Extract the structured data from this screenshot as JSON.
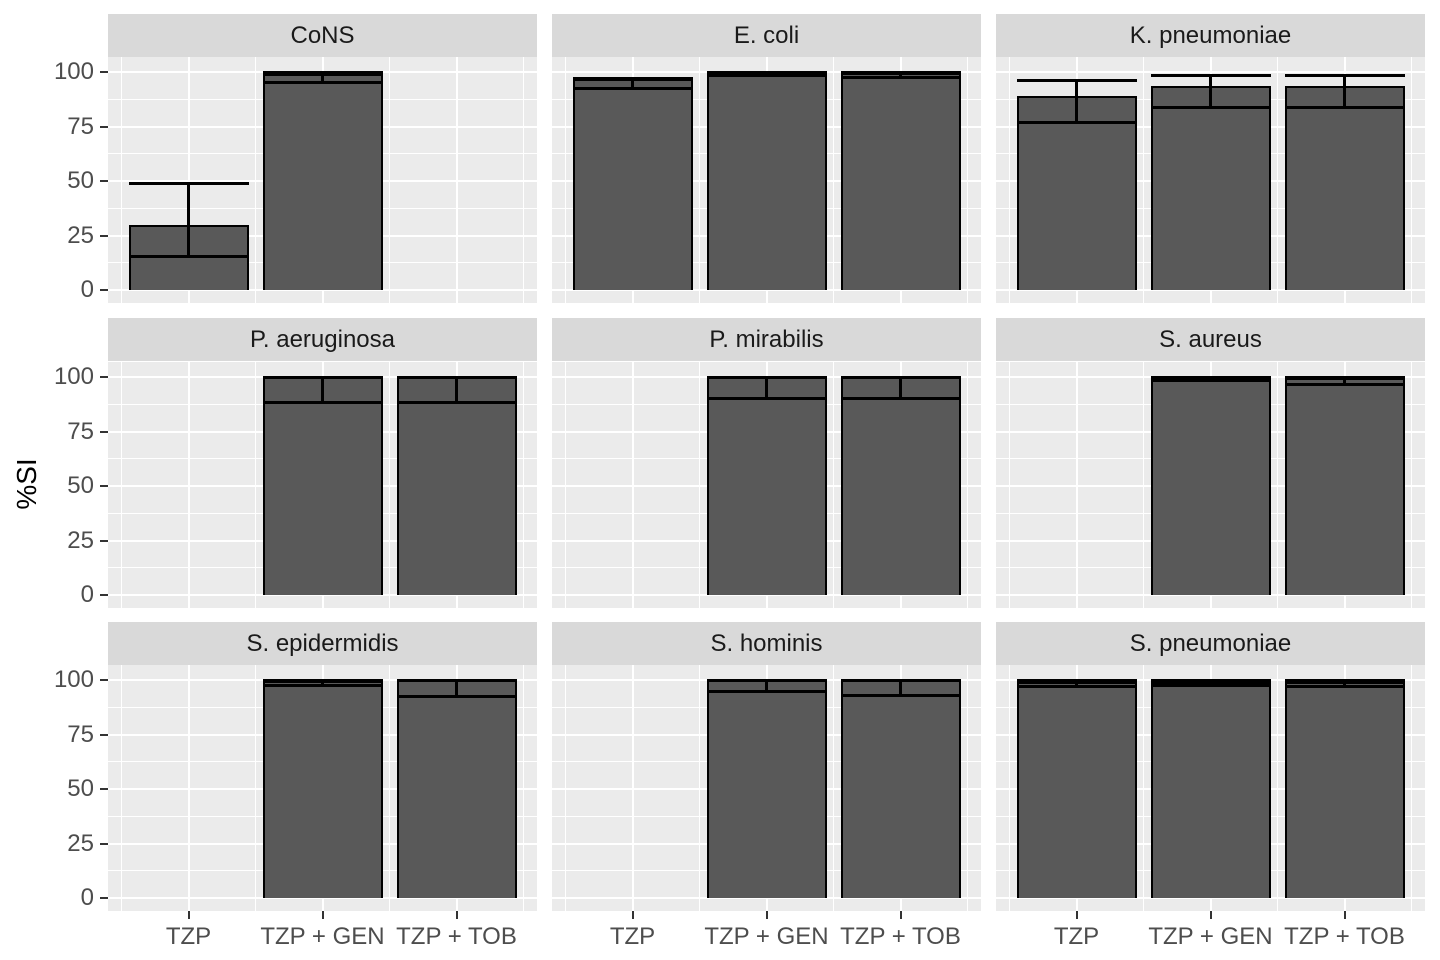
{
  "chart_data": {
    "type": "bar",
    "title": "",
    "ylabel": "%SI",
    "xlabel": "",
    "ylim": [
      0,
      100
    ],
    "yticks": [
      0,
      25,
      50,
      75,
      100
    ],
    "grid": "white major and minor gridlines on gray panels",
    "legend": "none",
    "error_bars": true,
    "categories": [
      "TZP",
      "TZP + GEN",
      "TZP + TOB"
    ],
    "facets": [
      {
        "title": "CoNS",
        "bars": [
          {
            "category": "TZP",
            "value": 30,
            "ci_low": 15.5,
            "ci_high": 49
          },
          {
            "category": "TZP + GEN",
            "value": 99.3,
            "ci_low": 95,
            "ci_high": 99.7
          }
        ]
      },
      {
        "title": "E. coli",
        "bars": [
          {
            "category": "TZP",
            "value": 96.8,
            "ci_low": 92.5,
            "ci_high": 96.8
          },
          {
            "category": "TZP + GEN",
            "value": 100,
            "ci_low": 98.5,
            "ci_high": 100
          },
          {
            "category": "TZP + TOB",
            "value": 99.7,
            "ci_low": 97.3,
            "ci_high": 99.9
          }
        ]
      },
      {
        "title": "K. pneumoniae",
        "bars": [
          {
            "category": "TZP",
            "value": 89,
            "ci_low": 77,
            "ci_high": 96.3
          },
          {
            "category": "TZP + GEN",
            "value": 93.5,
            "ci_low": 83.5,
            "ci_high": 98.3
          },
          {
            "category": "TZP + TOB",
            "value": 93.5,
            "ci_low": 83.5,
            "ci_high": 98.3
          }
        ]
      },
      {
        "title": "P. aeruginosa",
        "bars": [
          {
            "category": "TZP + GEN",
            "value": 100,
            "ci_low": 88.5,
            "ci_high": 100
          },
          {
            "category": "TZP + TOB",
            "value": 100,
            "ci_low": 88.5,
            "ci_high": 100
          }
        ]
      },
      {
        "title": "P. mirabilis",
        "bars": [
          {
            "category": "TZP + GEN",
            "value": 100,
            "ci_low": 90,
            "ci_high": 100
          },
          {
            "category": "TZP + TOB",
            "value": 100,
            "ci_low": 90,
            "ci_high": 100
          }
        ]
      },
      {
        "title": "S. aureus",
        "bars": [
          {
            "category": "TZP + GEN",
            "value": 99.4,
            "ci_low": 98.4,
            "ci_high": 99.9
          },
          {
            "category": "TZP + TOB",
            "value": 99.7,
            "ci_low": 96.4,
            "ci_high": 99.9
          }
        ]
      },
      {
        "title": "S. epidermidis",
        "bars": [
          {
            "category": "TZP + GEN",
            "value": 99.6,
            "ci_low": 97.3,
            "ci_high": 99.9
          },
          {
            "category": "TZP + TOB",
            "value": 100,
            "ci_low": 92.3,
            "ci_high": 100
          }
        ]
      },
      {
        "title": "S. hominis",
        "bars": [
          {
            "category": "TZP + GEN",
            "value": 100,
            "ci_low": 94.8,
            "ci_high": 100
          },
          {
            "category": "TZP + TOB",
            "value": 100,
            "ci_low": 93,
            "ci_high": 100
          }
        ]
      },
      {
        "title": "S. pneumoniae",
        "bars": [
          {
            "category": "TZP",
            "value": 99.3,
            "ci_low": 96.8,
            "ci_high": 99.8
          },
          {
            "category": "TZP + GEN",
            "value": 99.3,
            "ci_low": 97.5,
            "ci_high": 99.8
          },
          {
            "category": "TZP + TOB",
            "value": 99.3,
            "ci_low": 97,
            "ci_high": 99.8
          }
        ]
      }
    ]
  },
  "style": {
    "figure_bg": "#ffffff",
    "panel_bg": "#ebebeb",
    "strip_bg": "#d9d9d9",
    "grid_color": "#ffffff",
    "bar_fill": "#595959",
    "bar_outline": "#000000",
    "error_color": "#000000",
    "axis_text_color": "#4d4d4d",
    "strip_text_color": "#1a1a1a",
    "tick_color": "#333333",
    "axis_title_color": "#000000"
  }
}
